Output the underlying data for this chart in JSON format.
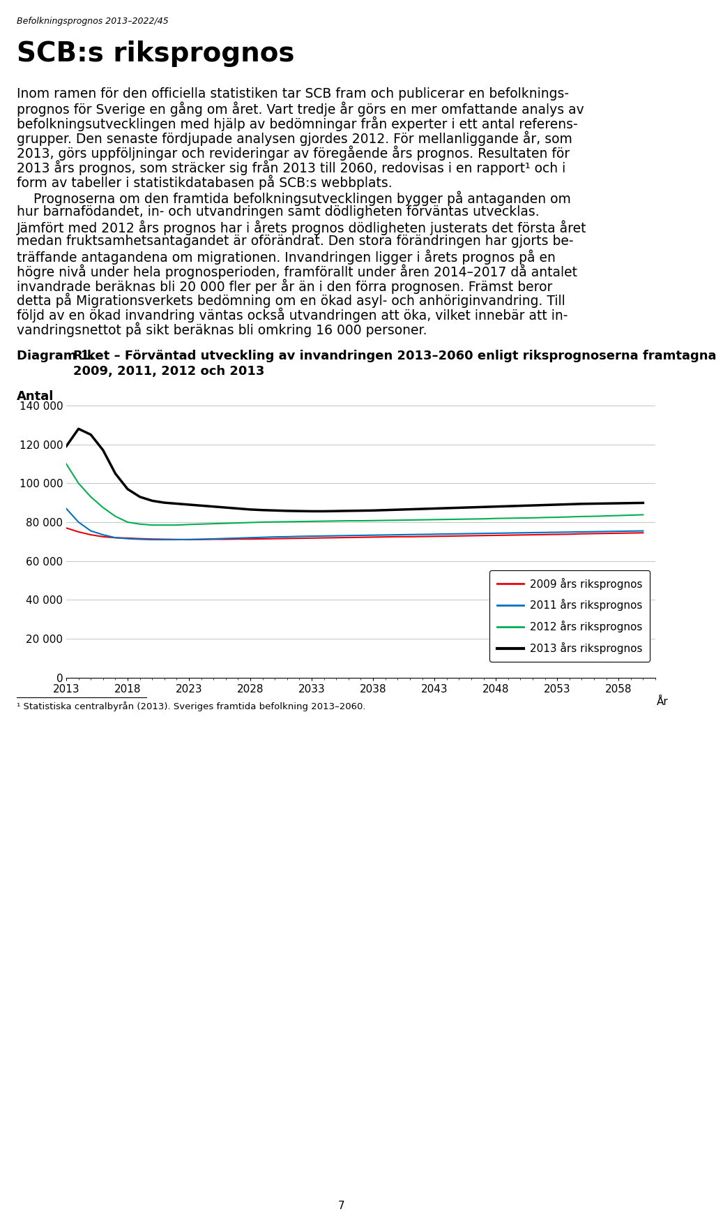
{
  "header_text": "Befolkningsprognos 2013–2022/45",
  "title_main": "SCB:s riksprognos",
  "paragraph1": "Inom ramen för den officiella statistiken tar SCB fram och publicerar en befolknings-\nprognos för Sverige en gång om året. Vart tredje år görs en mer omfattande analys av\nbefolkningsutvecklingen med hjälp av bedömningar från experter i ett antal referens-\ngrupper. Den senaste fördjupade analysen gjordes 2012. För mellanliggande år, som\n2013, görs uppföljningar och revideringar av föregående års prognos. Resultaten för\n2013 års prognos, som sträcker sig från 2013 till 2060, redovisas i en rapport¹ och i\nform av tabeller i statistikdatabasen på SCB:s webbplats.",
  "paragraph2": "    Prognoserna om den framtida befolkningsutvecklingen bygger på antaganden om\nhur barnafödandet, in- och utvandringen samt dödligheten förväntas utvecklas.\nJämfört med 2012 års prognos har i årets prognos dödligheten justerats det första året\nmedan fruktsamhetsantagandet är oförändrat. Den stora förändringen har gjorts be-\nträffande antagandena om migrationen. Invandringen ligger i årets prognos på en\nhögre nivå under hela prognosperioden, framförallt under åren 2014–2017 då antalet\ninvandrade beräknas bli 20 000 fler per år än i den förra prognosen. Främst beror\ndetta på Migrationsverkets bedömning om en ökad asyl- och anhöriginvandring. Till\nföljd av en ökad invandring väntas också utvandringen att öka, vilket innebär att in-\nvandringsnettot på sikt beräknas bli omkring 16 000 personer.",
  "diagram_label": "Diagram 1.",
  "diagram_title_line1": "Riket – Förväntad utveckling av invandringen 2013–2060 enligt riksprognoserna framtagna",
  "diagram_title_line2": "2009, 2011, 2012 och 2013",
  "ylabel_above": "Antal",
  "xlabel_right": "År",
  "ylim": [
    0,
    140000
  ],
  "yticks": [
    0,
    20000,
    40000,
    60000,
    80000,
    100000,
    120000,
    140000
  ],
  "ytick_labels": [
    "0",
    "20 000",
    "40 000",
    "60 000",
    "80 000",
    "100 000",
    "120 000",
    "140 000"
  ],
  "xticks": [
    2013,
    2018,
    2023,
    2028,
    2033,
    2038,
    2043,
    2048,
    2053,
    2058
  ],
  "xlim": [
    2013,
    2061
  ],
  "series": {
    "s2009": {
      "color": "#e8000b",
      "label": "2009 års riksprognos",
      "linewidth": 1.5,
      "years": [
        2013,
        2014,
        2015,
        2016,
        2017,
        2018,
        2019,
        2020,
        2021,
        2022,
        2023,
        2024,
        2025,
        2026,
        2027,
        2028,
        2029,
        2030,
        2031,
        2032,
        2033,
        2034,
        2035,
        2036,
        2037,
        2038,
        2039,
        2040,
        2041,
        2042,
        2043,
        2044,
        2045,
        2046,
        2047,
        2048,
        2049,
        2050,
        2051,
        2052,
        2053,
        2054,
        2055,
        2056,
        2057,
        2058,
        2059,
        2060
      ],
      "values": [
        77000,
        75000,
        73500,
        72500,
        72000,
        71800,
        71500,
        71300,
        71200,
        71100,
        71000,
        71100,
        71200,
        71200,
        71300,
        71300,
        71400,
        71500,
        71600,
        71700,
        71800,
        71900,
        72000,
        72100,
        72200,
        72300,
        72400,
        72500,
        72500,
        72600,
        72700,
        72800,
        72900,
        73000,
        73100,
        73200,
        73300,
        73400,
        73500,
        73600,
        73700,
        73800,
        74000,
        74100,
        74200,
        74300,
        74400,
        74500
      ]
    },
    "s2011": {
      "color": "#0070c0",
      "label": "2011 års riksprognos",
      "linewidth": 1.5,
      "years": [
        2013,
        2014,
        2015,
        2016,
        2017,
        2018,
        2019,
        2020,
        2021,
        2022,
        2023,
        2024,
        2025,
        2026,
        2027,
        2028,
        2029,
        2030,
        2031,
        2032,
        2033,
        2034,
        2035,
        2036,
        2037,
        2038,
        2039,
        2040,
        2041,
        2042,
        2043,
        2044,
        2045,
        2046,
        2047,
        2048,
        2049,
        2050,
        2051,
        2052,
        2053,
        2054,
        2055,
        2056,
        2057,
        2058,
        2059,
        2060
      ],
      "values": [
        87000,
        80000,
        75500,
        73500,
        72000,
        71500,
        71200,
        71000,
        71000,
        71000,
        71100,
        71200,
        71400,
        71600,
        71800,
        72000,
        72200,
        72400,
        72500,
        72700,
        72800,
        72900,
        73000,
        73100,
        73200,
        73300,
        73400,
        73500,
        73600,
        73700,
        73800,
        73900,
        74000,
        74100,
        74200,
        74300,
        74400,
        74500,
        74600,
        74700,
        74800,
        74900,
        75000,
        75100,
        75200,
        75300,
        75400,
        75500
      ]
    },
    "s2012": {
      "color": "#00b050",
      "label": "2012 års riksprognos",
      "linewidth": 1.5,
      "years": [
        2013,
        2014,
        2015,
        2016,
        2017,
        2018,
        2019,
        2020,
        2021,
        2022,
        2023,
        2024,
        2025,
        2026,
        2027,
        2028,
        2029,
        2030,
        2031,
        2032,
        2033,
        2034,
        2035,
        2036,
        2037,
        2038,
        2039,
        2040,
        2041,
        2042,
        2043,
        2044,
        2045,
        2046,
        2047,
        2048,
        2049,
        2050,
        2051,
        2052,
        2053,
        2054,
        2055,
        2056,
        2057,
        2058,
        2059,
        2060
      ],
      "values": [
        110000,
        100000,
        93000,
        87500,
        83000,
        80000,
        79000,
        78500,
        78500,
        78500,
        78800,
        79000,
        79200,
        79400,
        79600,
        79800,
        80000,
        80100,
        80200,
        80300,
        80400,
        80500,
        80600,
        80700,
        80700,
        80800,
        80900,
        81000,
        81100,
        81200,
        81300,
        81400,
        81500,
        81600,
        81700,
        81900,
        82000,
        82100,
        82200,
        82400,
        82500,
        82700,
        82900,
        83000,
        83200,
        83400,
        83600,
        83800
      ]
    },
    "s2013": {
      "color": "#000000",
      "label": "2013 års riksprognos",
      "linewidth": 2.5,
      "years": [
        2013,
        2014,
        2015,
        2016,
        2017,
        2018,
        2019,
        2020,
        2021,
        2022,
        2023,
        2024,
        2025,
        2026,
        2027,
        2028,
        2029,
        2030,
        2031,
        2032,
        2033,
        2034,
        2035,
        2036,
        2037,
        2038,
        2039,
        2040,
        2041,
        2042,
        2043,
        2044,
        2045,
        2046,
        2047,
        2048,
        2049,
        2050,
        2051,
        2052,
        2053,
        2054,
        2055,
        2056,
        2057,
        2058,
        2059,
        2060
      ],
      "values": [
        119000,
        128000,
        125000,
        117000,
        105000,
        97000,
        93000,
        91000,
        90000,
        89500,
        89000,
        88500,
        88000,
        87500,
        87000,
        86500,
        86200,
        86000,
        85800,
        85700,
        85600,
        85600,
        85700,
        85800,
        85900,
        86000,
        86200,
        86400,
        86600,
        86800,
        87000,
        87200,
        87400,
        87600,
        87800,
        88000,
        88200,
        88400,
        88600,
        88800,
        89000,
        89200,
        89400,
        89500,
        89600,
        89700,
        89800,
        89900
      ]
    }
  },
  "footnote": "¹ Statistiska centralbyrån (2013). Sveriges framtida befolkning 2013–2060.",
  "page_number": "7",
  "background_color": "#ffffff",
  "text_fontsize": 13.5,
  "header_fontsize": 9,
  "title_fontsize": 28,
  "diagram_label_fontsize": 13,
  "chart_tick_fontsize": 11,
  "legend_fontsize": 11
}
